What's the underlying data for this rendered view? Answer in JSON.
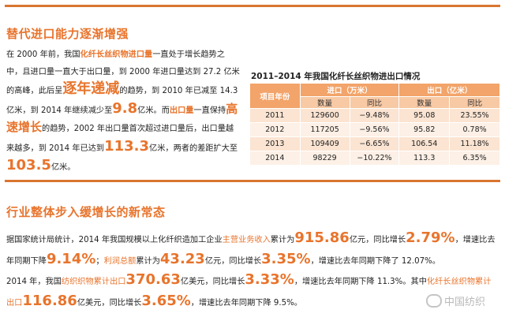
{
  "section1": {
    "title": "替代进口能力逐渐增强",
    "p": {
      "t1": "在 2000 年前，我国",
      "h1": "化纤长丝织物进口量",
      "t2": "一直处于增长趋势之中，且进口量一直大于出口量，到 2000 年进口量达到 27.2 亿米的高峰，此后呈",
      "big1": "逐年递减",
      "t3": "的趋势，到 2010 年已减至 14.3 亿米，到 2014 年继续减少至",
      "big2": "9.8",
      "t4": "亿米。而",
      "h2": "出口量",
      "t5": "一直保持",
      "big3": "高速增长",
      "t6": "的趋势，2002 年出口量首次超过进口量后，出口量越来越多，到 2014 年已达到",
      "big4": "113.3",
      "t7": "亿米，两者的差距扩大至",
      "big5": "103.5",
      "t8": "亿米。"
    }
  },
  "table": {
    "title": "2011–2014 年我国化纤长丝织物进出口情况",
    "col_year": "项目年份",
    "group_import": "进口（万米）",
    "group_export": "出口（亿米）",
    "sub_qty": "数量",
    "sub_yoy": "同比",
    "rows": [
      {
        "year": "2011",
        "imp": "129600",
        "imp_yoy": "−9.48%",
        "exp": "95.08",
        "exp_yoy": "23.55%"
      },
      {
        "year": "2012",
        "imp": "117205",
        "imp_yoy": "−9.56%",
        "exp": "95.82",
        "exp_yoy": "0.78%"
      },
      {
        "year": "2013",
        "imp": "109409",
        "imp_yoy": "−6.65%",
        "exp": "106.54",
        "exp_yoy": "11.18%"
      },
      {
        "year": "2014",
        "imp": "98229",
        "imp_yoy": "−10.22%",
        "exp": "113.3",
        "exp_yoy": "6.35%"
      }
    ]
  },
  "section2": {
    "title": "行业整体步入缓增长的新常态",
    "p": {
      "t1": "据国家统计局统计，2014 年我国规模以上化纤织造加工企业",
      "h1": "主营业务收入",
      "t2": "累计为",
      "n1": "915.86",
      "t3": "亿元，同比增长",
      "n2": "2.79%",
      "t4": "，增速比去年同期下降",
      "n3": "9.14%",
      "t5": "；",
      "h2": "利润总额",
      "t6": "累计为",
      "n4": "43.23",
      "t7": "亿元，同比增长",
      "n5": "3.35%",
      "t8": "，增速比去年同期下降了 12.07%。",
      "t9": "2014 年，我国",
      "h3": "纺织织物累计出口",
      "n6": "370.63",
      "t10": "亿美元，同比增长",
      "n7": "3.33%",
      "t11": "，增速比去年同期下降 11.3%。其中",
      "h4": "化纤长丝织物累计出口",
      "n8": "116.86",
      "t12": "亿美元，同比增长",
      "n9": "3.65%",
      "t13": "，增速比去年同期下降 9.5%。"
    }
  },
  "watermark": {
    "icon": "wechat-icon",
    "text": "中国纺织"
  },
  "colors": {
    "accent": "#e8742c",
    "rule": "#d9762f",
    "table_head": "#f2a46a"
  }
}
